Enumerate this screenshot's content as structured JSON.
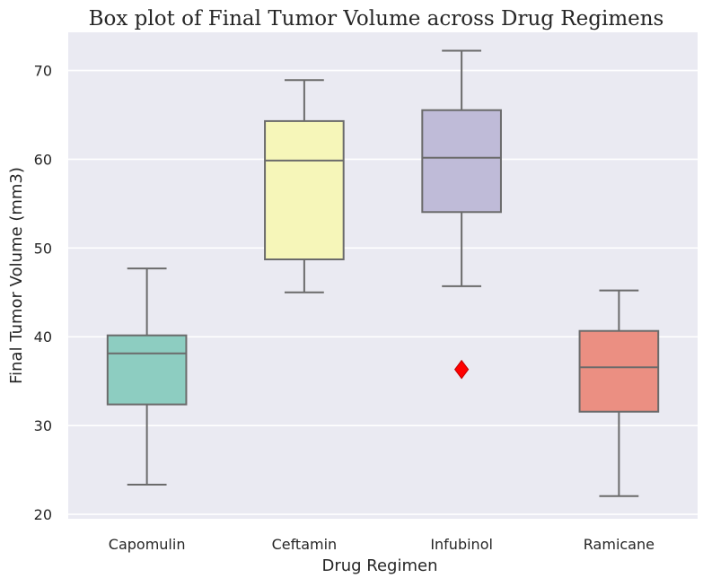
{
  "chart_data": {
    "type": "box",
    "title": "Box plot of Final Tumor Volume across Drug Regimens",
    "xlabel": "Drug Regimen",
    "ylabel": "Final Tumor Volume (mm3)",
    "ylim": [
      19.5,
      74.3
    ],
    "yticks": [
      20,
      30,
      40,
      50,
      60,
      70
    ],
    "grid": true,
    "categories": [
      "Capomulin",
      "Ceftamin",
      "Infubinol",
      "Ramicane"
    ],
    "boxes": [
      {
        "name": "Capomulin",
        "whisker_low": 23.34,
        "q1": 32.38,
        "median": 38.13,
        "q3": 40.16,
        "whisker_high": 47.69,
        "outliers": [],
        "color": "#8dcdc1"
      },
      {
        "name": "Ceftamin",
        "whisker_low": 45.0,
        "q1": 48.72,
        "median": 59.85,
        "q3": 64.3,
        "whisker_high": 68.92,
        "outliers": [],
        "color": "#f6f6b9"
      },
      {
        "name": "Infubinol",
        "whisker_low": 45.7,
        "q1": 54.05,
        "median": 60.17,
        "q3": 65.53,
        "whisker_high": 72.23,
        "outliers": [
          36.32
        ],
        "color": "#bfbbd8"
      },
      {
        "name": "Ramicane",
        "whisker_low": 22.05,
        "q1": 31.56,
        "median": 36.56,
        "q3": 40.66,
        "whisker_high": 45.22,
        "outliers": [],
        "color": "#eb8f82"
      }
    ],
    "colors": {
      "background": "#eaeaf2",
      "grid": "#ffffff",
      "line": "#6b6b6b",
      "outlier": "#ff0000"
    }
  }
}
